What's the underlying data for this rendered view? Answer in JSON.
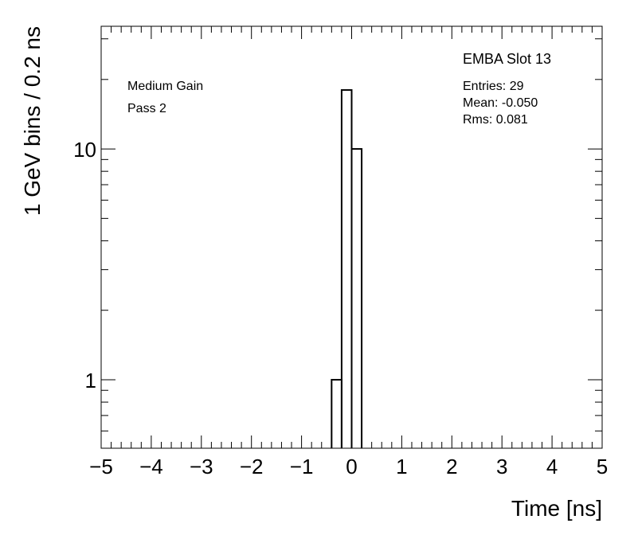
{
  "chart_data": {
    "type": "histogram",
    "title": "EMBA Slot 13",
    "annotations": [
      "Medium Gain",
      "Pass 2"
    ],
    "stats": [
      "Entries: 29",
      "Mean: -0.050",
      "Rms: 0.081"
    ],
    "x_label": "Time [ns]",
    "y_label": "1 GeV bins / 0.2 ns",
    "bins": [
      -5,
      -4.8,
      -4.6,
      -4.4,
      -4.2,
      -4,
      -3.8,
      -3.6,
      -3.4,
      -3.2,
      -3,
      -2.8,
      -2.6,
      -2.4,
      -2.2,
      -2,
      -1.8,
      -1.6,
      -1.4,
      -1.2,
      -1,
      -0.8,
      -0.6,
      -0.4,
      -0.2,
      0,
      0.2,
      0.4,
      0.6,
      0.8,
      1,
      1.2,
      1.4,
      1.6,
      1.8,
      2,
      2.2,
      2.4,
      2.6,
      2.8,
      3,
      3.2,
      3.4,
      3.6,
      3.8,
      4,
      4.2,
      4.4,
      4.6,
      4.8,
      5
    ],
    "values": [
      0,
      0,
      0,
      0,
      0,
      0,
      0,
      0,
      0,
      0,
      0,
      0,
      0,
      0,
      0,
      0,
      0,
      0,
      0,
      0,
      0,
      0,
      0,
      1,
      18,
      10,
      0,
      0,
      0,
      0,
      0,
      0,
      0,
      0,
      0,
      0,
      0,
      0,
      0,
      0,
      0,
      0,
      0,
      0,
      0,
      0,
      0,
      0,
      0,
      0
    ],
    "color": "#000000",
    "xlim": [
      -5,
      5
    ],
    "xticks": [
      {
        "value": -5,
        "label": "−5"
      },
      {
        "value": -4,
        "label": "−4"
      },
      {
        "value": -3,
        "label": "−3"
      },
      {
        "value": -2,
        "label": "−2"
      },
      {
        "value": -1,
        "label": "−1"
      },
      0,
      1,
      2,
      3,
      4,
      5
    ],
    "ylim": [
      0.505,
      34
    ],
    "yticks": [
      1,
      10
    ],
    "log_y": true
  }
}
